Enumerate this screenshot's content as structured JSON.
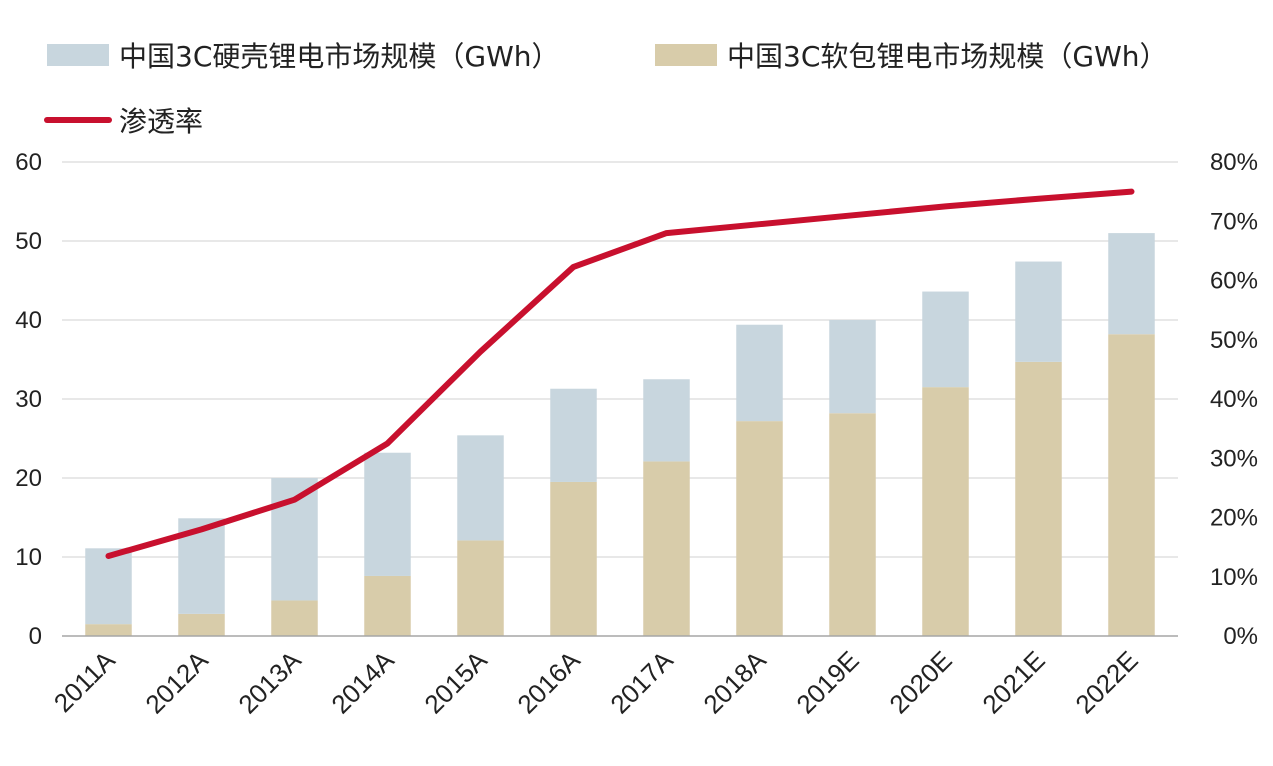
{
  "chart_data": {
    "type": "bar",
    "stacked": true,
    "categories": [
      "2011A",
      "2012A",
      "2013A",
      "2014A",
      "2015A",
      "2016A",
      "2017A",
      "2018A",
      "2019E",
      "2020E",
      "2021E",
      "2022E"
    ],
    "series": [
      {
        "name": "中国3C硬壳锂电市场规模（GWh）",
        "kind": "bar",
        "axis": "left",
        "color": "#c8d6de",
        "values": [
          9.6,
          12.1,
          15.5,
          15.6,
          13.3,
          11.8,
          10.4,
          12.2,
          11.8,
          12.1,
          12.7,
          12.8
        ]
      },
      {
        "name": "中国3C软包锂电市场规模（GWh）",
        "kind": "bar",
        "axis": "left",
        "color": "#d8ccaa",
        "values": [
          1.5,
          2.8,
          4.5,
          7.6,
          12.1,
          19.5,
          22.1,
          27.2,
          28.2,
          31.5,
          34.7,
          38.2
        ]
      },
      {
        "name": "渗透率",
        "kind": "line",
        "axis": "right",
        "color": "#c8102e",
        "values": [
          13.5,
          18.0,
          23.0,
          32.5,
          48.0,
          62.3,
          68.0,
          69.5,
          71.0,
          72.5,
          73.8,
          75.0
        ]
      }
    ],
    "y_left": {
      "range": [
        0,
        60
      ],
      "ticks": [
        "0",
        "10",
        "20",
        "30",
        "40",
        "50",
        "60"
      ]
    },
    "y_right": {
      "range": [
        0,
        80
      ],
      "ticks": [
        "0%",
        "10%",
        "20%",
        "30%",
        "40%",
        "50%",
        "60%",
        "70%",
        "80%"
      ]
    },
    "grid": true,
    "legend": "top"
  }
}
